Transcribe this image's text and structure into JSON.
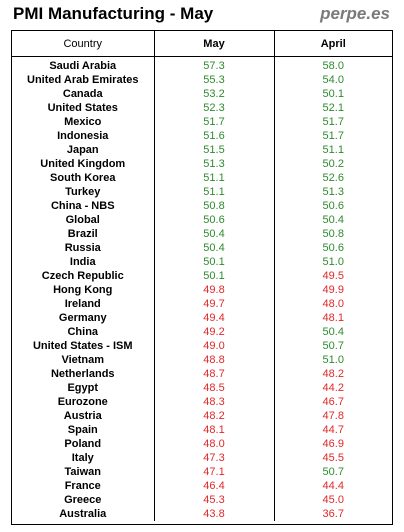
{
  "header": {
    "title": "PMI Manufacturing - May",
    "brand": "perpe.es"
  },
  "colors": {
    "above_50": "#2e8b2e",
    "below_50": "#e0282a"
  },
  "table": {
    "columns": [
      "Country",
      "May",
      "April"
    ],
    "rows": [
      {
        "country": "Saudi Arabia",
        "may": "57.3",
        "april": "58.0"
      },
      {
        "country": "United Arab Emirates",
        "may": "55.3",
        "april": "54.0"
      },
      {
        "country": "Canada",
        "may": "53.2",
        "april": "50.1"
      },
      {
        "country": "United States",
        "may": "52.3",
        "april": "52.1"
      },
      {
        "country": "Mexico",
        "may": "51.7",
        "april": "51.7"
      },
      {
        "country": "Indonesia",
        "may": "51.6",
        "april": "51.7"
      },
      {
        "country": "Japan",
        "may": "51.5",
        "april": "51.1"
      },
      {
        "country": "United Kingdom",
        "may": "51.3",
        "april": "50.2"
      },
      {
        "country": "South Korea",
        "may": "51.1",
        "april": "52.6"
      },
      {
        "country": "Turkey",
        "may": "51.1",
        "april": "51.3"
      },
      {
        "country": "China - NBS",
        "may": "50.8",
        "april": "50.6"
      },
      {
        "country": "Global",
        "may": "50.6",
        "april": "50.4"
      },
      {
        "country": "Brazil",
        "may": "50.4",
        "april": "50.8"
      },
      {
        "country": "Russia",
        "may": "50.4",
        "april": "50.6"
      },
      {
        "country": "India",
        "may": "50.1",
        "april": "51.0"
      },
      {
        "country": "Czech Republic",
        "may": "50.1",
        "april": "49.5"
      },
      {
        "country": "Hong Kong",
        "may": "49.8",
        "april": "49.9"
      },
      {
        "country": "Ireland",
        "may": "49.7",
        "april": "48.0"
      },
      {
        "country": "Germany",
        "may": "49.4",
        "april": "48.1"
      },
      {
        "country": "China",
        "may": "49.2",
        "april": "50.4"
      },
      {
        "country": "United States - ISM",
        "may": "49.0",
        "april": "50.7"
      },
      {
        "country": "Vietnam",
        "may": "48.8",
        "april": "51.0"
      },
      {
        "country": "Netherlands",
        "may": "48.7",
        "april": "48.2"
      },
      {
        "country": "Egypt",
        "may": "48.5",
        "april": "44.2"
      },
      {
        "country": "Eurozone",
        "may": "48.3",
        "april": "46.7"
      },
      {
        "country": "Austria",
        "may": "48.2",
        "april": "47.8"
      },
      {
        "country": "Spain",
        "may": "48.1",
        "april": "44.7"
      },
      {
        "country": "Poland",
        "may": "48.0",
        "april": "46.9"
      },
      {
        "country": "Italy",
        "may": "47.3",
        "april": "45.5"
      },
      {
        "country": "Taiwan",
        "may": "47.1",
        "april": "50.7"
      },
      {
        "country": "France",
        "may": "46.4",
        "april": "44.4"
      },
      {
        "country": "Greece",
        "may": "45.3",
        "april": "45.0"
      },
      {
        "country": "Australia",
        "may": "43.8",
        "april": "36.7"
      }
    ]
  }
}
